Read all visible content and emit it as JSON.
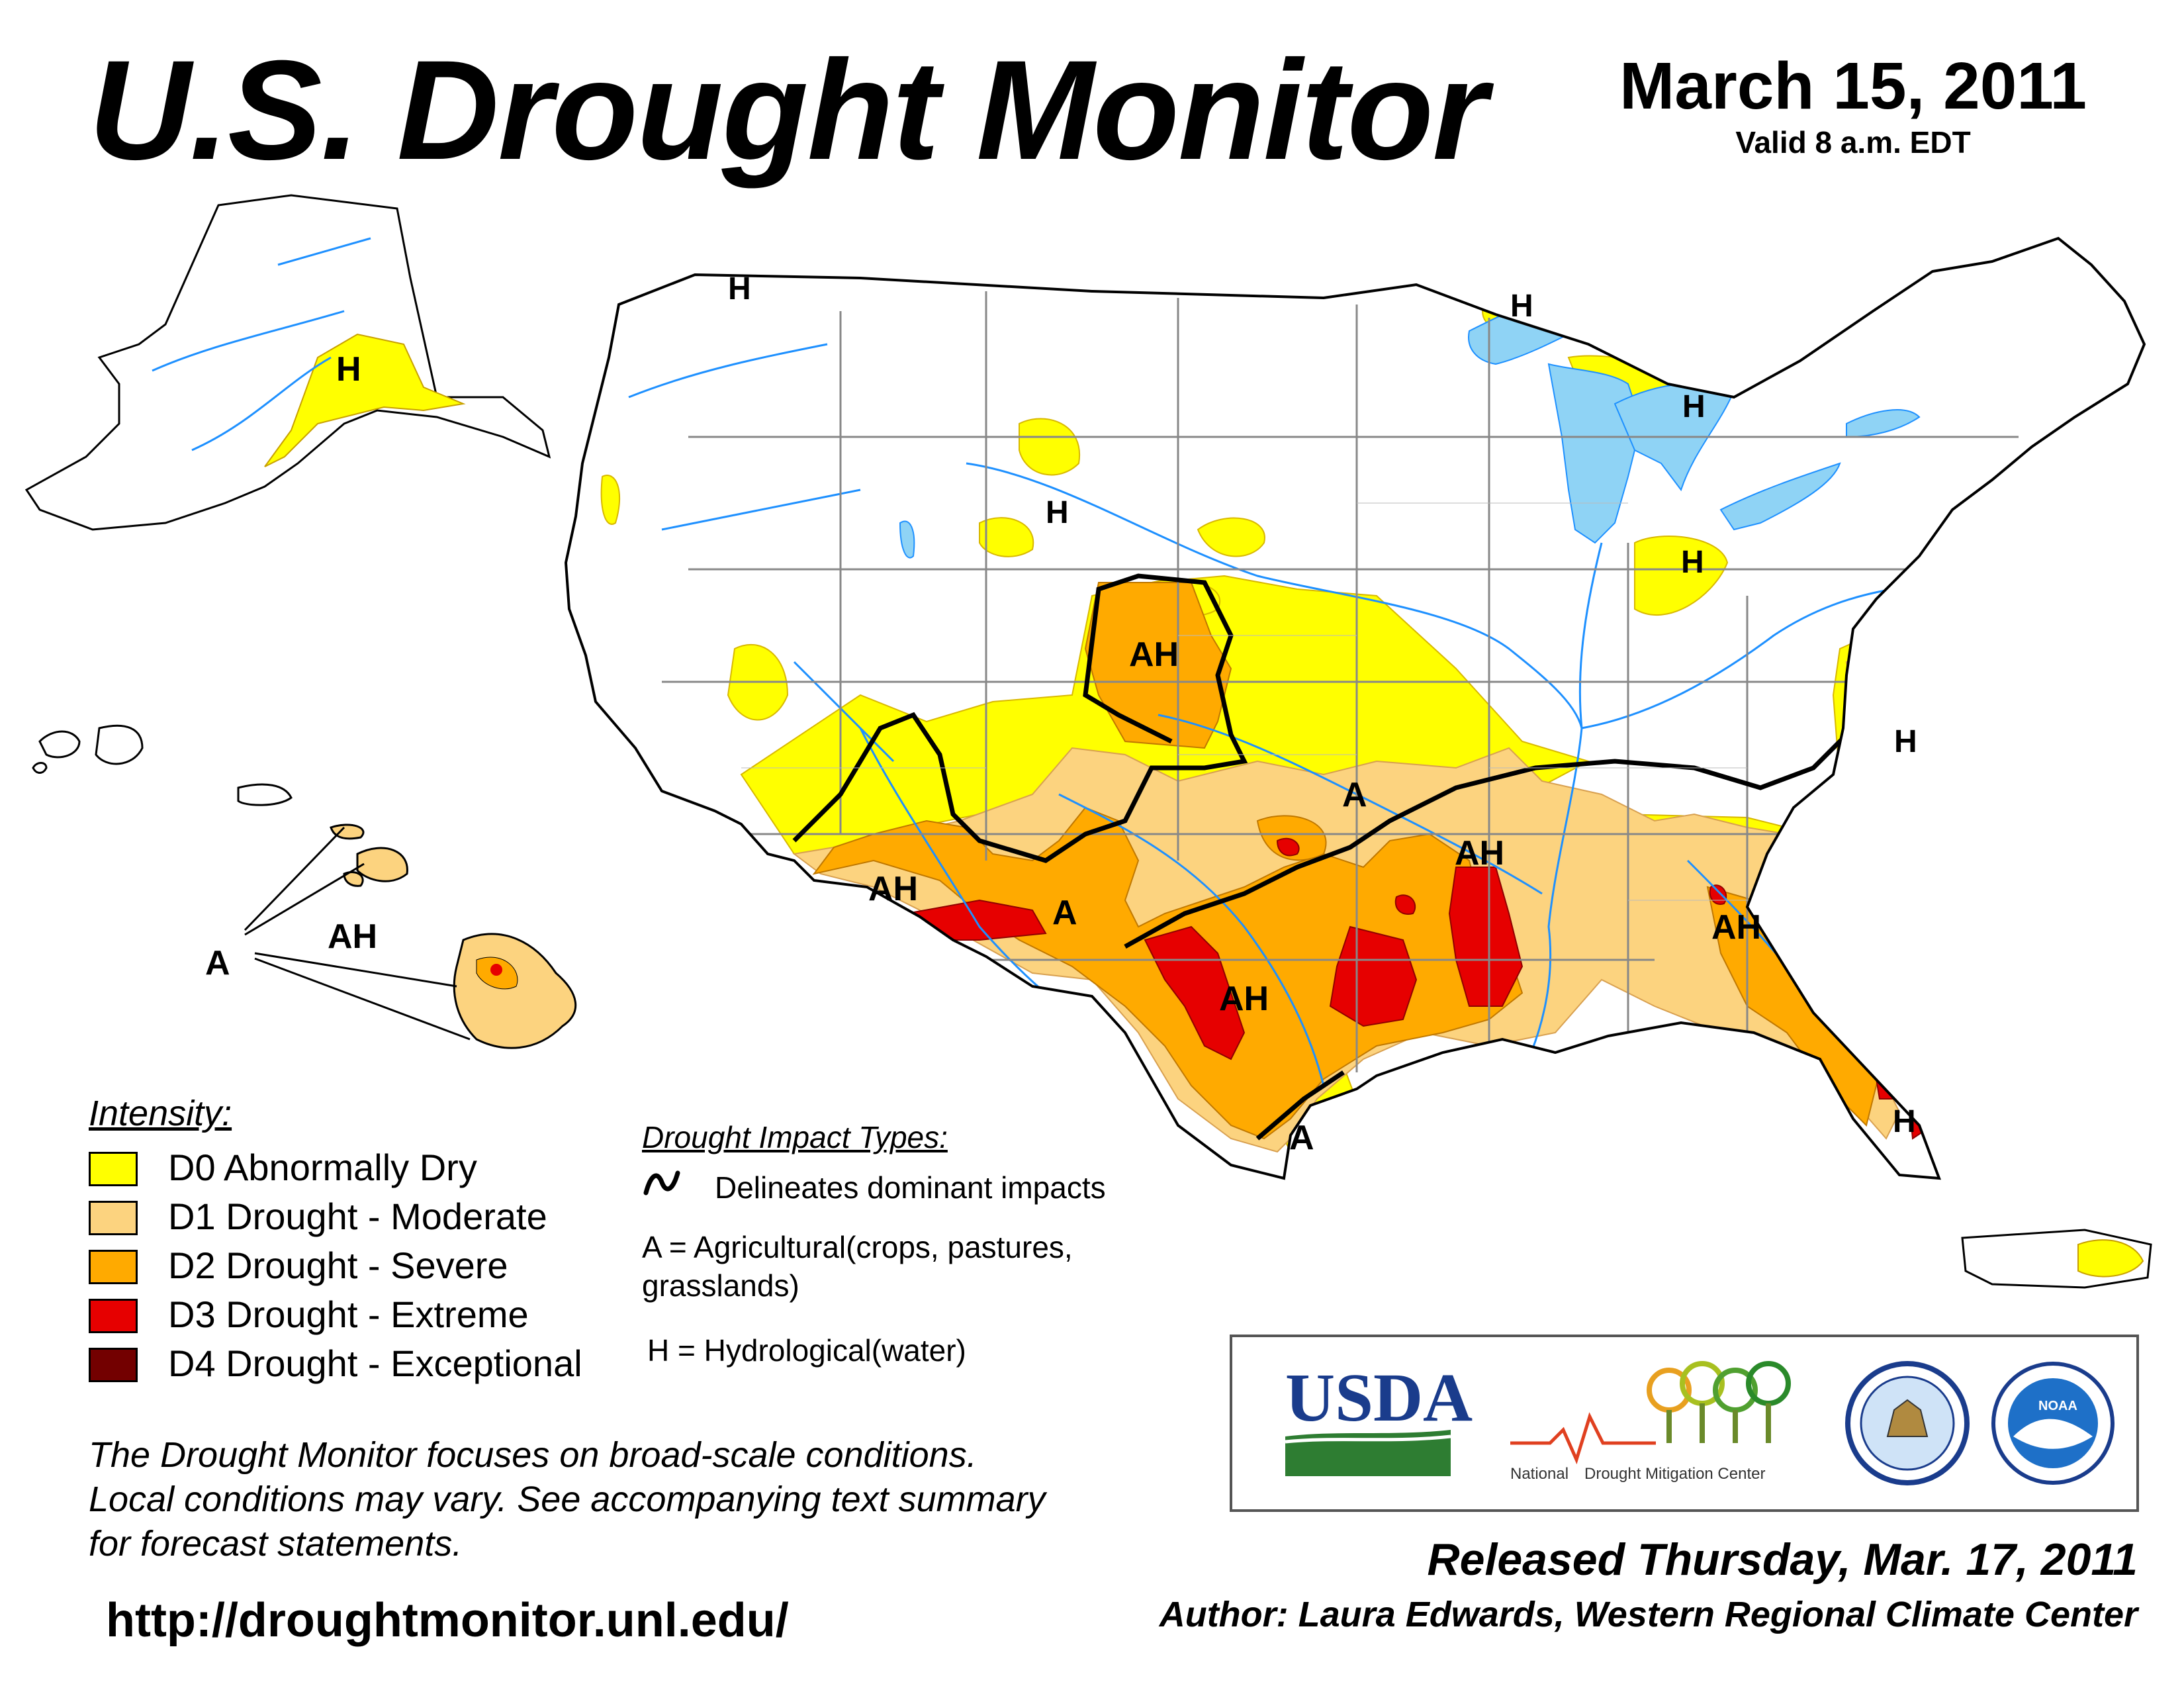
{
  "header": {
    "title": "U.S. Drought Monitor",
    "date": "March 15, 2011",
    "valid": "Valid 8 a.m. EDT"
  },
  "legend": {
    "title": "Intensity:",
    "items": [
      {
        "label": "D0 Abnormally Dry",
        "color": "#ffff00"
      },
      {
        "label": "D1 Drought - Moderate",
        "color": "#fcd37f"
      },
      {
        "label": "D2 Drought - Severe",
        "color": "#ffaa00"
      },
      {
        "label": "D3 Drought - Extreme",
        "color": "#e60000"
      },
      {
        "label": "D4 Drought - Exceptional",
        "color": "#730000"
      }
    ]
  },
  "impacts": {
    "title": "Drought Impact Types:",
    "delineates": "Delineates dominant impacts",
    "ag_line1": "A = Agricultural(crops, pastures,",
    "ag_line2": "grasslands)",
    "hydro": "H = Hydrological(water)"
  },
  "map_labels": {
    "AH": "AH",
    "A": "A",
    "H": "H"
  },
  "colors": {
    "water": "#8fd3f5",
    "river": "#1e90ff",
    "state_border": "#888888",
    "county_border": "#bbbbbb",
    "impact_line": "#000000"
  },
  "disclaimer": {
    "line1": "The Drought Monitor focuses on broad-scale conditions.",
    "line2": "Local conditions may vary. See accompanying text summary",
    "line3": "for forecast statements."
  },
  "url": "http://droughtmonitor.unl.edu/",
  "logos": {
    "usda": "USDA",
    "ndmc_part1": "National",
    "ndmc_part2": "Drought Mitigation Center",
    "commerce_icon": "dept-of-commerce-seal-icon",
    "noaa_icon": "noaa-seal-icon",
    "noaa_text": "NOAA"
  },
  "footer": {
    "released": "Released Thursday, Mar. 17, 2011",
    "author": "Author: Laura Edwards, Western Regional Climate Center"
  }
}
